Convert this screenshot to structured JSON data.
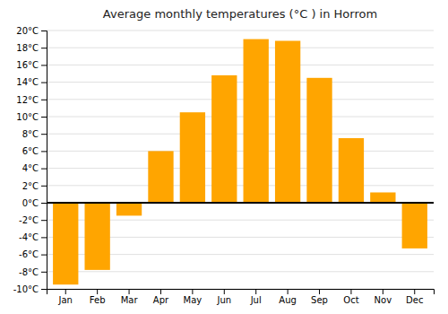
{
  "chart_data": {
    "type": "bar",
    "title": "Average monthly temperatures (°C ) in Horrom",
    "categories": [
      "Jan",
      "Feb",
      "Mar",
      "Apr",
      "May",
      "Jun",
      "Jul",
      "Aug",
      "Sep",
      "Oct",
      "Nov",
      "Dec"
    ],
    "values": [
      -9.5,
      -7.8,
      -1.5,
      6.0,
      10.5,
      14.8,
      19.0,
      18.8,
      14.5,
      7.5,
      1.2,
      -5.3
    ],
    "color": "#FFA500",
    "ylim": [
      -10,
      20
    ],
    "yticks": [
      {
        "value": -10,
        "label": "-10°C"
      },
      {
        "value": -8,
        "label": "-8°C"
      },
      {
        "value": -6,
        "label": "-6°C"
      },
      {
        "value": -4,
        "label": "-4°C"
      },
      {
        "value": -2,
        "label": "-2°C"
      },
      {
        "value": 0,
        "label": "0°C"
      },
      {
        "value": 2,
        "label": "2°C"
      },
      {
        "value": 4,
        "label": "4°C"
      },
      {
        "value": 6,
        "label": "6°C"
      },
      {
        "value": 8,
        "label": "8°C"
      },
      {
        "value": 10,
        "label": "10°C"
      },
      {
        "value": 12,
        "label": "12°C"
      },
      {
        "value": 14,
        "label": "14°C"
      },
      {
        "value": 16,
        "label": "16°C"
      },
      {
        "value": 18,
        "label": "18°C"
      },
      {
        "value": 20,
        "label": "20°C"
      }
    ],
    "grid": true
  }
}
